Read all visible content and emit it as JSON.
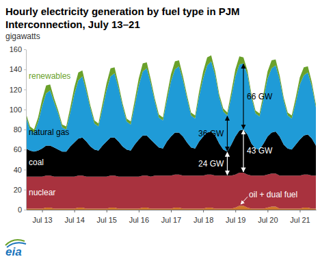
{
  "chart_data": {
    "type": "area",
    "stacked": true,
    "title": "Hourly electricity generation by fuel type in PJM Interconnection, July 13–21",
    "subtitle": "gigawatts",
    "logo": "eia",
    "x": [
      0,
      3,
      6,
      9,
      12,
      15,
      18,
      21,
      24,
      27,
      30,
      33,
      36,
      39,
      42,
      45,
      48,
      51,
      54,
      57,
      60,
      63,
      66,
      69,
      72,
      75,
      78,
      81,
      84,
      87,
      90,
      93,
      96,
      99,
      102,
      105,
      108,
      111,
      114,
      117,
      120,
      123,
      126,
      129,
      132,
      135,
      138,
      141,
      144,
      147,
      150,
      153,
      156,
      159,
      162,
      165,
      168,
      171,
      174,
      177,
      180,
      183,
      186,
      189,
      192,
      195,
      198,
      201,
      204,
      207,
      210,
      213,
      216
    ],
    "xlim": [
      0,
      216
    ],
    "xticks": [
      {
        "value": 12,
        "label": "Jul 13"
      },
      {
        "value": 36,
        "label": "Jul 14"
      },
      {
        "value": 60,
        "label": "Jul 15"
      },
      {
        "value": 84,
        "label": "Jul 16"
      },
      {
        "value": 108,
        "label": "Jul 17"
      },
      {
        "value": 132,
        "label": "Jul 18"
      },
      {
        "value": 156,
        "label": "Jul 19"
      },
      {
        "value": 180,
        "label": "Jul 20"
      },
      {
        "value": 204,
        "label": "Jul 21"
      }
    ],
    "ylim": [
      0,
      160
    ],
    "yticks": [
      0,
      20,
      40,
      60,
      80,
      100,
      120,
      140,
      160
    ],
    "grid": false,
    "series": [
      {
        "name": "oil + dual fuel",
        "color": "#d0782c",
        "values": [
          1,
          1,
          1,
          1,
          1,
          2,
          2,
          1,
          1,
          1,
          1,
          1,
          1,
          2,
          2,
          1,
          1,
          1,
          1,
          1,
          1,
          2,
          2,
          1,
          1,
          1,
          1,
          1,
          1,
          2,
          2,
          1,
          1,
          1,
          1,
          1,
          1,
          2,
          2,
          1,
          1,
          1,
          1,
          1,
          1,
          2,
          2,
          1,
          1,
          1,
          1,
          1,
          2,
          4,
          4,
          2,
          1,
          1,
          1,
          1,
          2,
          3,
          3,
          1,
          1,
          1,
          1,
          1,
          1,
          2,
          2,
          1,
          1
        ]
      },
      {
        "name": "nuclear",
        "color": "#a8323e",
        "values": [
          32,
          32,
          32,
          32,
          32,
          32,
          32,
          32,
          32,
          32,
          32,
          32,
          32,
          32,
          32,
          32,
          32,
          32,
          32,
          32,
          32,
          32,
          32,
          32,
          32,
          32,
          32,
          32,
          32,
          32,
          32,
          32,
          33,
          33,
          33,
          33,
          33,
          33,
          33,
          33,
          33,
          33,
          33,
          33,
          33,
          33,
          33,
          33,
          33,
          33,
          33,
          33,
          33,
          33,
          33,
          33,
          33,
          33,
          33,
          33,
          33,
          33,
          33,
          33,
          33,
          33,
          33,
          33,
          33,
          33,
          33,
          33,
          33
        ]
      },
      {
        "name": "coal",
        "color": "#000000",
        "values": [
          28,
          26,
          25,
          26,
          28,
          30,
          30,
          29,
          27,
          25,
          25,
          30,
          34,
          37,
          38,
          35,
          30,
          27,
          26,
          31,
          35,
          38,
          38,
          35,
          30,
          27,
          26,
          32,
          37,
          40,
          40,
          37,
          32,
          28,
          27,
          34,
          39,
          42,
          42,
          39,
          33,
          28,
          27,
          34,
          39,
          42,
          43,
          40,
          32,
          26,
          24,
          31,
          38,
          42,
          43,
          40,
          32,
          27,
          26,
          32,
          38,
          41,
          42,
          39,
          31,
          27,
          26,
          31,
          36,
          39,
          40,
          37,
          30
        ]
      },
      {
        "name": "natural gas",
        "color": "#1f9bd7",
        "values": [
          32,
          21,
          19,
          28,
          42,
          52,
          55,
          45,
          36,
          24,
          22,
          34,
          48,
          58,
          61,
          50,
          38,
          26,
          24,
          37,
          51,
          61,
          64,
          53,
          40,
          28,
          26,
          39,
          54,
          64,
          67,
          56,
          42,
          30,
          28,
          41,
          55,
          63,
          66,
          56,
          44,
          32,
          30,
          45,
          58,
          67,
          70,
          60,
          46,
          38,
          36,
          48,
          60,
          66,
          66,
          60,
          46,
          35,
          33,
          45,
          58,
          64,
          66,
          57,
          44,
          33,
          31,
          42,
          55,
          60,
          62,
          52,
          38
        ]
      },
      {
        "name": "renewables",
        "color": "#6aa12b",
        "values": [
          3,
          3,
          3,
          5,
          7,
          8,
          6,
          4,
          3,
          3,
          3,
          5,
          7,
          8,
          6,
          4,
          3,
          3,
          3,
          5,
          7,
          8,
          6,
          4,
          3,
          3,
          3,
          5,
          7,
          8,
          6,
          4,
          3,
          3,
          3,
          5,
          7,
          8,
          6,
          4,
          3,
          3,
          3,
          5,
          7,
          8,
          6,
          4,
          3,
          3,
          3,
          5,
          7,
          8,
          6,
          4,
          3,
          3,
          3,
          5,
          7,
          8,
          6,
          4,
          3,
          3,
          3,
          5,
          7,
          8,
          6,
          4,
          3
        ]
      }
    ],
    "annotations": [
      {
        "text": "24 GW",
        "x": 150,
        "series": "coal"
      },
      {
        "text": "36 GW",
        "x": 150,
        "series": "natural gas"
      },
      {
        "text": "43 GW",
        "x": 162,
        "series": "coal"
      },
      {
        "text": "66 GW",
        "x": 162,
        "series": "natural gas"
      }
    ]
  }
}
